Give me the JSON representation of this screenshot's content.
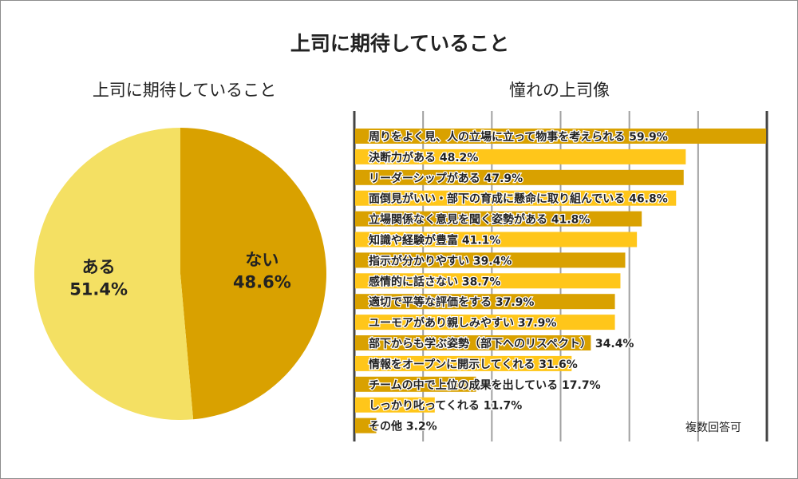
{
  "title": "上司に期待していること",
  "note": "複数回答可",
  "chart_data": [
    {
      "type": "pie",
      "title": "上司に期待していること",
      "slices": [
        {
          "label": "ない",
          "value": 48.6,
          "display": "48.6%",
          "color": "#d9a100"
        },
        {
          "label": "ある",
          "value": 51.4,
          "display": "51.4%",
          "color": "#f4e063"
        }
      ]
    },
    {
      "type": "bar",
      "orientation": "horizontal",
      "title": "憧れの上司像",
      "xlim": [
        0,
        60
      ],
      "grid": true,
      "categories": [
        "周りをよく見、人の立場に立って物事を考えられる",
        "決断力がある",
        "リーダーシップがある",
        "面倒見がいい・部下の育成に懸命に取り組んでいる",
        "立場関係なく意見を聞く姿勢がある",
        "知識や経験が豊富",
        "指示が分かりやすい",
        "感情的に話さない",
        "適切で平等な評価をする",
        "ユーモアがあり親しみやすい",
        "部下からも学ぶ姿勢（部下へのリスペクト）",
        "情報をオープンに開示してくれる",
        "チームの中で上位の成果を出している",
        "しっかり叱ってくれる",
        "その他"
      ],
      "values": [
        59.9,
        48.2,
        47.9,
        46.8,
        41.8,
        41.1,
        39.4,
        38.7,
        37.9,
        37.9,
        34.4,
        31.6,
        17.7,
        11.7,
        3.2
      ],
      "value_labels": [
        "59.9%",
        "48.2%",
        "47.9%",
        "46.8%",
        "41.8%",
        "41.1%",
        "39.4%",
        "38.7%",
        "37.9%",
        "37.9%",
        "34.4%",
        "31.6%",
        "17.7%",
        "11.7%",
        "3.2%"
      ],
      "colors": {
        "odd": "#d9a100",
        "even": "#ffc61a",
        "grid": "#a0a0a0",
        "axis": "#444444"
      }
    }
  ]
}
